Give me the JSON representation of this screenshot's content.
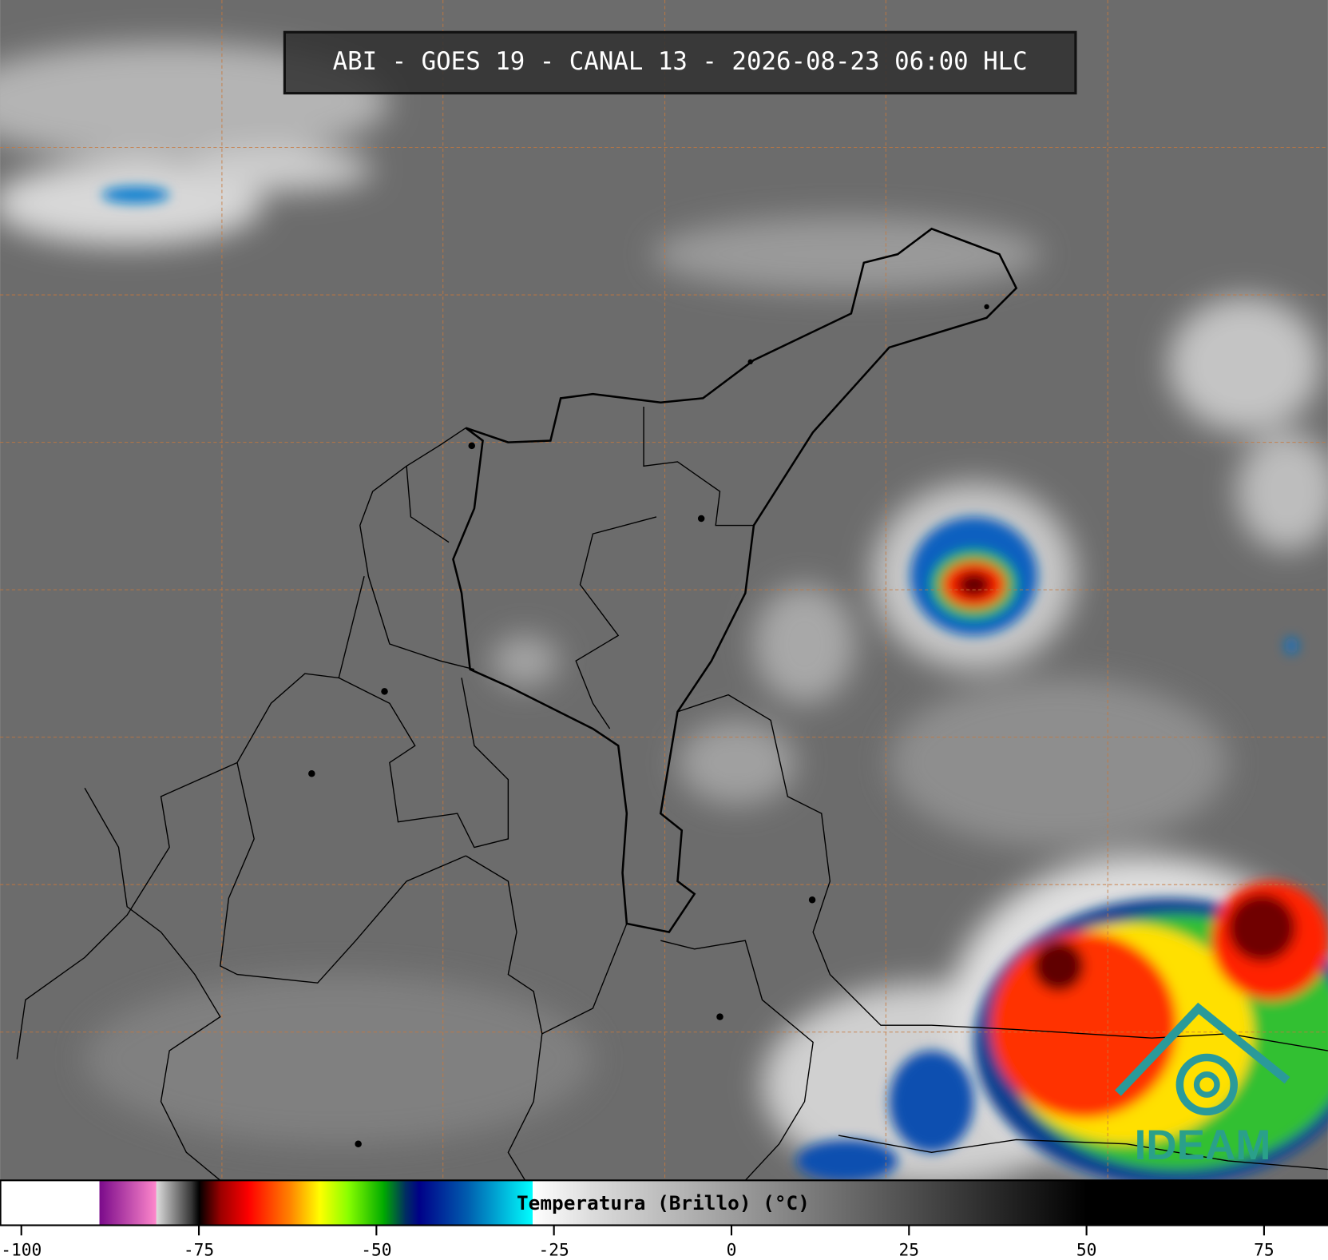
{
  "title": "ABI - GOES 19 - CANAL 13 - 2026-08-23 06:00 HLC",
  "logo": "IDEAM",
  "colorbar": {
    "label": "Temperatura (Brillo) (°C)",
    "lim": [
      -103,
      84
    ],
    "ticks": [
      -100,
      -75,
      -50,
      -25,
      0,
      25,
      50,
      75
    ],
    "colormap": [
      {
        "value": -103,
        "color": "#ffffff"
      },
      {
        "value": -89,
        "color": "#ffffff"
      },
      {
        "value": -89,
        "color": "#7a0a8a"
      },
      {
        "value": -81,
        "color": "#ff88cc"
      },
      {
        "value": -81,
        "color": "#dddddd"
      },
      {
        "value": -76,
        "color": "#333333"
      },
      {
        "value": -75,
        "color": "#000000"
      },
      {
        "value": -72,
        "color": "#990000"
      },
      {
        "value": -68,
        "color": "#ff0000"
      },
      {
        "value": -62,
        "color": "#ff8800"
      },
      {
        "value": -58,
        "color": "#ffff00"
      },
      {
        "value": -54,
        "color": "#88ff00"
      },
      {
        "value": -49,
        "color": "#00aa00"
      },
      {
        "value": -46,
        "color": "#003060"
      },
      {
        "value": -44,
        "color": "#000088"
      },
      {
        "value": -37,
        "color": "#0060b0"
      },
      {
        "value": -28,
        "color": "#00ffff"
      },
      {
        "value": -28,
        "color": "#ffffff"
      },
      {
        "value": -20,
        "color": "#dddddd"
      },
      {
        "value": 50,
        "color": "#000000"
      },
      {
        "value": 84,
        "color": "#000000"
      }
    ]
  }
}
